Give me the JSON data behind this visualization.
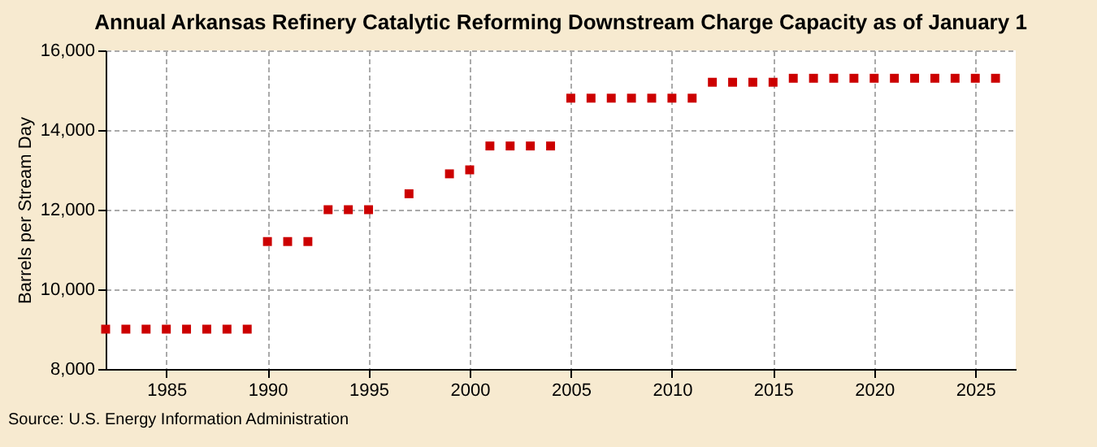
{
  "chart_data": {
    "type": "scatter",
    "title": "Annual Arkansas Refinery Catalytic Reforming Downstream Charge Capacity as of January 1",
    "ylabel": "Barrels per Stream Day",
    "x": [
      1982,
      1983,
      1984,
      1985,
      1986,
      1987,
      1988,
      1989,
      1990,
      1991,
      1992,
      1993,
      1994,
      1995,
      1996,
      1997,
      1998,
      1999,
      2000,
      2001,
      2002,
      2003,
      2004,
      2005,
      2006,
      2007,
      2008,
      2009,
      2010,
      2011,
      2012,
      2013,
      2014,
      2015,
      2016,
      2017,
      2018,
      2019,
      2020,
      2021,
      2022,
      2023,
      2024,
      2025,
      2026
    ],
    "series": [
      {
        "color": "#cc0000",
        "values": [
          9000,
          9000,
          9000,
          9000,
          9000,
          9000,
          9000,
          9000,
          11200,
          11200,
          11200,
          12000,
          12000,
          12000,
          null,
          12400,
          null,
          12900,
          13000,
          13600,
          13600,
          13600,
          13600,
          14800,
          14800,
          14800,
          14800,
          14800,
          14800,
          14800,
          15200,
          15200,
          15200,
          15200,
          15300,
          15300,
          15300,
          15300,
          15300,
          15300,
          15300,
          15300,
          15300,
          15300,
          15300
        ]
      }
    ],
    "xlim": [
      1982,
      2027
    ],
    "xticks": [
      1985,
      1990,
      1995,
      2000,
      2005,
      2010,
      2015,
      2020,
      2025
    ],
    "ylim": [
      8000,
      16000
    ],
    "yticks": [
      {
        "value": 8000,
        "label": "8,000"
      },
      {
        "value": 10000,
        "label": "10,000"
      },
      {
        "value": 12000,
        "label": "12,000"
      },
      {
        "value": 14000,
        "label": "14,000"
      },
      {
        "value": 16000,
        "label": "16,000"
      }
    ],
    "grid": true,
    "marker": "square",
    "annotations": [
      "Source: U.S. Energy Information Administration"
    ]
  }
}
